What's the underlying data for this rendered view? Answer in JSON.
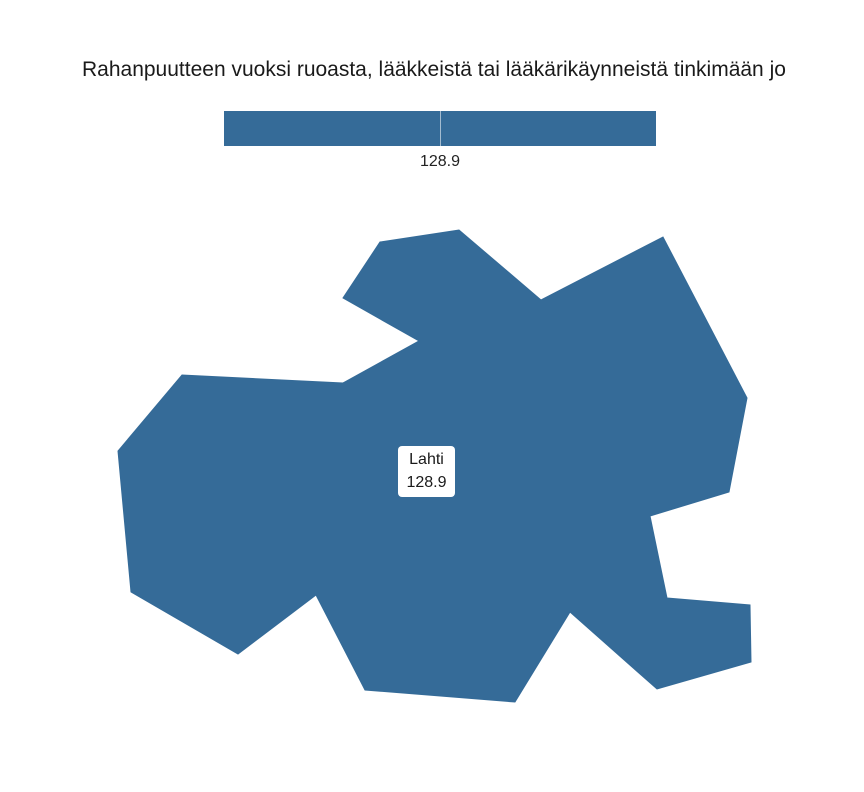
{
  "map": {
    "title": "Rahanpuutteen vuoksi ruoasta, lääkkeistä tai lääkärikäynneistä tinkimään jo",
    "fill_color": "#356b98",
    "legend": {
      "value_label": "128.9"
    },
    "regions": [
      {
        "name": "Lahti",
        "value": "128.9"
      }
    ]
  }
}
